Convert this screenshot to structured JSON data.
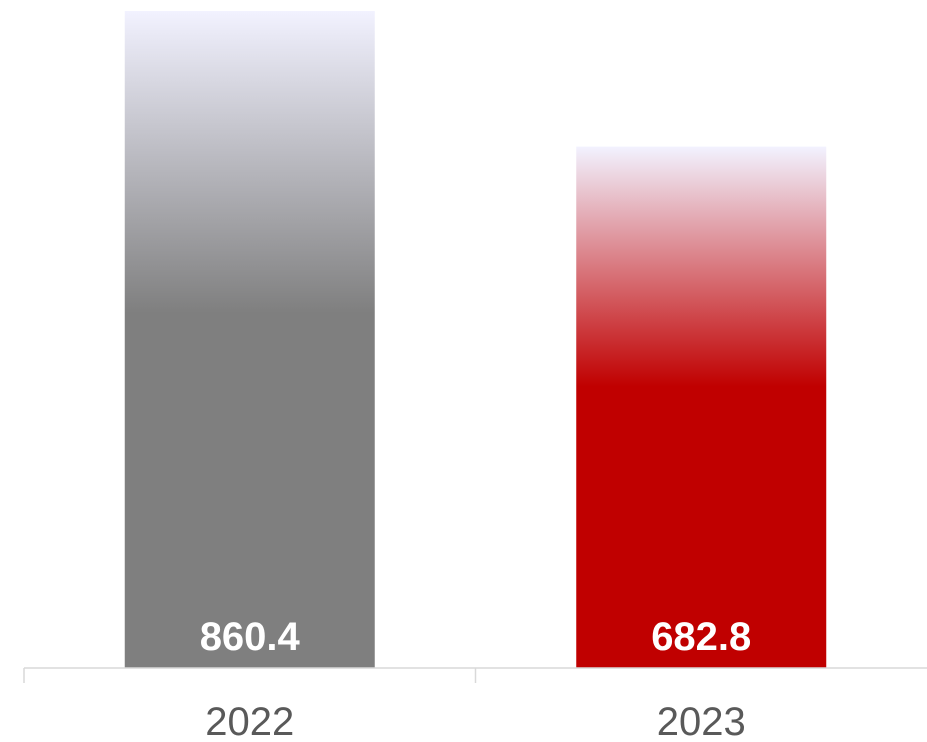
{
  "chart_data": {
    "type": "bar",
    "title": "",
    "xlabel": "",
    "ylabel": "",
    "categories": [
      "2022",
      "2023"
    ],
    "values": [
      860.4,
      682.8
    ],
    "value_labels": [
      "860.4",
      "682.8"
    ],
    "ylim": [
      0,
      860.4
    ],
    "grid": false,
    "legend": "none",
    "bar_style": "vertical gradient fading to near-white at top",
    "colors": {
      "2022": "#7f7f7f",
      "2023": "#c00000",
      "fade_top": "#f2f2ff",
      "axis": "#d9d9d9",
      "tick_text": "#595959",
      "value_text": "#ffffff"
    }
  }
}
